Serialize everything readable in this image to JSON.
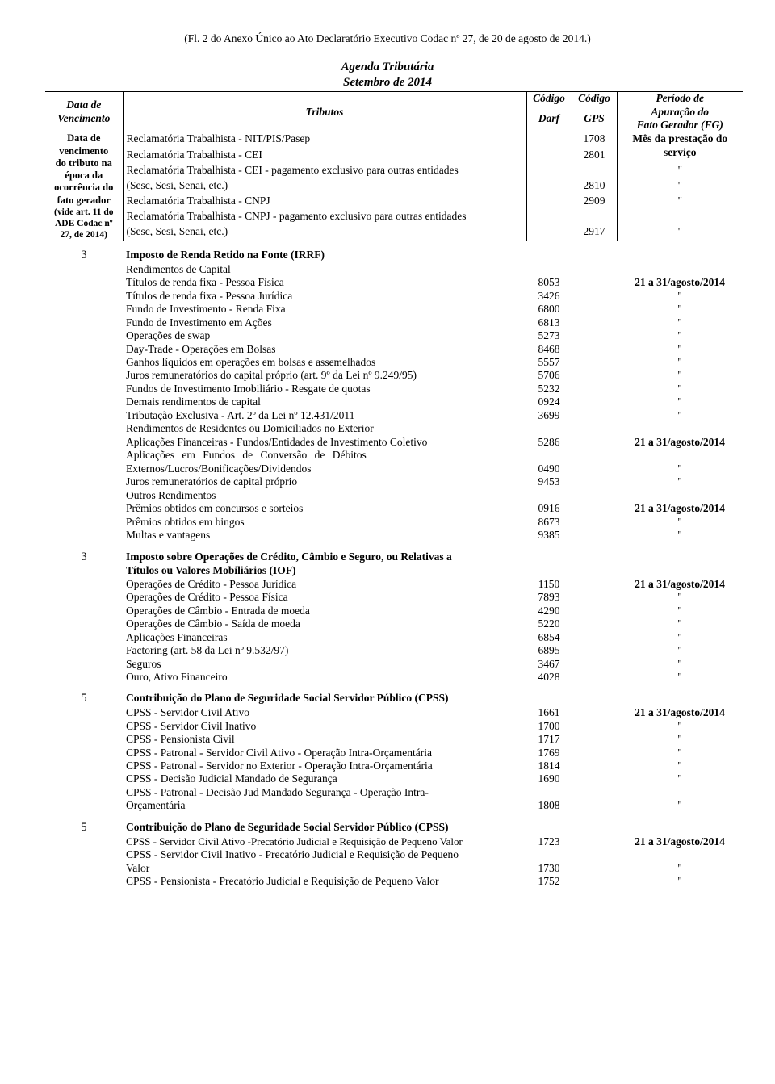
{
  "fl_header": "(Fl. 2 do Anexo Único ao Ato Declaratório Executivo Codac nº 27, de 20 de agosto de 2014.)",
  "agenda_title": "Agenda Tributária",
  "agenda_subtitle": "Setembro de 2014",
  "headers": {
    "data_venc_l1": "Data de",
    "data_venc_l2": "Vencimento",
    "tributos": "Tributos",
    "codigo": "Código",
    "darf": "Darf",
    "gps": "GPS",
    "periodo_l1": "Período de",
    "periodo_l2": "Apuração do",
    "periodo_l3": "Fato Gerador (FG)"
  },
  "left_block": {
    "l1": "Data de",
    "l2": "vencimento",
    "l3": "do tributo na",
    "l4": "época da",
    "l5": "ocorrência do",
    "l6": "fato gerador",
    "l7": "(vide art. 11 do",
    "l8": "ADE Codac nº",
    "l9": "27, de 2014)"
  },
  "block1": {
    "r1": {
      "desc": "Reclamatória Trabalhista - NIT/PIS/Pasep",
      "gps": "1708",
      "per_l1": "Mês da prestação do",
      "per_l2": "serviço"
    },
    "r2": {
      "desc": "Reclamatória Trabalhista - CEI",
      "gps": "2801",
      "per": "\""
    },
    "r3a": {
      "desc": "Reclamatória Trabalhista - CEI - pagamento exclusivo para outras entidades"
    },
    "r3b": {
      "desc": "(Sesc, Sesi, Senai, etc.)",
      "gps": "2810",
      "per": "\""
    },
    "r4": {
      "desc": "Reclamatória Trabalhista - CNPJ",
      "gps": "2909",
      "per": "\""
    },
    "r5a": {
      "desc": "Reclamatória Trabalhista - CNPJ - pagamento exclusivo para outras entidades"
    },
    "r5b": {
      "desc": "(Sesc, Sesi, Senai, etc.)",
      "gps": "2917",
      "per": "\""
    }
  },
  "sec3a": {
    "num": "3",
    "title": "Imposto de Renda Retido na Fonte (IRRF)",
    "sub1": "Rendimentos de Capital",
    "rows": [
      {
        "desc": "Títulos de renda fixa - Pessoa Física",
        "darf": "8053",
        "per": "21 a 31/agosto/2014"
      },
      {
        "desc": "Títulos de renda fixa - Pessoa Jurídica",
        "darf": "3426",
        "per": "\""
      },
      {
        "desc": "Fundo de Investimento - Renda Fixa",
        "darf": "6800",
        "per": "\""
      },
      {
        "desc": "Fundo de Investimento em Ações",
        "darf": "6813",
        "per": "\""
      },
      {
        "desc": "Operações de swap",
        "darf": "5273",
        "per": "\""
      },
      {
        "desc": "Day-Trade - Operações em Bolsas",
        "darf": "8468",
        "per": "\""
      },
      {
        "desc": "Ganhos líquidos em operações em bolsas e assemelhados",
        "darf": "5557",
        "per": "\""
      },
      {
        "desc": "Juros remuneratórios do capital próprio (art. 9º da Lei nº 9.249/95)",
        "darf": "5706",
        "per": "\""
      },
      {
        "desc": "Fundos de Investimento Imobiliário - Resgate de quotas",
        "darf": "5232",
        "per": "\""
      },
      {
        "desc": "Demais rendimentos de capital",
        "darf": "0924",
        "per": "\""
      },
      {
        "desc": "Tributação Exclusiva - Art. 2º da Lei nº 12.431/2011",
        "darf": "3699",
        "per": "\""
      }
    ],
    "sub2": "Rendimentos de Residentes ou Domiciliados no Exterior",
    "rows2": [
      {
        "desc": "Aplicações Financeiras - Fundos/Entidades de Investimento Coletivo",
        "darf": "5286",
        "per": "21 a 31/agosto/2014"
      }
    ],
    "r_aplic_l1": "Aplicações    em    Fundos    de    Conversão    de    Débitos",
    "r_aplic_l2": "Externos/Lucros/Bonificações/Dividendos",
    "r_aplic_darf": "0490",
    "r_aplic_per": "\"",
    "r_juros": {
      "desc": "Juros remuneratórios de capital próprio",
      "darf": "9453",
      "per": "\""
    },
    "sub3": "Outros Rendimentos",
    "rows3": [
      {
        "desc": "Prêmios obtidos em concursos e sorteios",
        "darf": "0916",
        "per": "21 a 31/agosto/2014"
      },
      {
        "desc": "Prêmios obtidos em bingos",
        "darf": "8673",
        "per": "\""
      },
      {
        "desc": "Multas e vantagens",
        "darf": "9385",
        "per": "\""
      }
    ]
  },
  "sec3b": {
    "num": "3",
    "title_l1": "Imposto sobre Operações de Crédito, Câmbio e Seguro, ou Relativas a",
    "title_l2": "Títulos ou Valores Mobiliários (IOF)",
    "rows": [
      {
        "desc": "Operações de Crédito - Pessoa Jurídica",
        "darf": "1150",
        "per": "21 a 31/agosto/2014"
      },
      {
        "desc": "Operações de Crédito - Pessoa Física",
        "darf": "7893",
        "per": "\""
      },
      {
        "desc": "Operações de Câmbio - Entrada de moeda",
        "darf": "4290",
        "per": "\""
      },
      {
        "desc": "Operações de Câmbio - Saída de moeda",
        "darf": "5220",
        "per": "\""
      },
      {
        "desc": "Aplicações Financeiras",
        "darf": "6854",
        "per": "\""
      },
      {
        "desc": "Factoring (art. 58 da Lei nº 9.532/97)",
        "darf": "6895",
        "per": "\""
      },
      {
        "desc": "Seguros",
        "darf": "3467",
        "per": "\""
      },
      {
        "desc": "Ouro, Ativo Financeiro",
        "darf": "4028",
        "per": "\""
      }
    ]
  },
  "sec5a": {
    "num": "5",
    "title": "Contribuição do Plano de Seguridade Social Servidor Público (CPSS)",
    "rows": [
      {
        "desc": "CPSS - Servidor Civil Ativo",
        "darf": "1661",
        "per": "21 a 31/agosto/2014"
      },
      {
        "desc": "CPSS - Servidor Civil Inativo",
        "darf": "1700",
        "per": "\""
      },
      {
        "desc": "CPSS - Pensionista Civil",
        "darf": "1717",
        "per": "\""
      },
      {
        "desc": "CPSS - Patronal - Servidor Civil Ativo - Operação Intra-Orçamentária",
        "darf": "1769",
        "per": "\""
      },
      {
        "desc": "CPSS - Patronal - Servidor no Exterior - Operação Intra-Orçamentária",
        "darf": "1814",
        "per": "\""
      },
      {
        "desc": "CPSS - Decisão Judicial Mandado de Segurança",
        "darf": "1690",
        "per": "\""
      }
    ],
    "r_multi_l1": "CPSS - Patronal - Decisão Jud Mandado Segurança - Operação Intra-",
    "r_multi_l2": "Orçamentária",
    "r_multi_darf": "1808",
    "r_multi_per": "\""
  },
  "sec5b": {
    "num": "5",
    "title": "Contribuição do Plano de Seguridade Social Servidor Público (CPSS)",
    "r1": {
      "desc": "CPSS - Servidor Civil Ativo -Precatório Judicial e Requisição de Pequeno Valor",
      "darf": "1723",
      "per": "21 a 31/agosto/2014"
    },
    "r2_l1": "CPSS - Servidor Civil Inativo - Precatório Judicial e Requisição de Pequeno",
    "r2_l2": "Valor",
    "r2_darf": "1730",
    "r2_per": "\"",
    "r3": {
      "desc": "CPSS - Pensionista - Precatório Judicial e Requisição de Pequeno Valor",
      "darf": "1752",
      "per": "\""
    }
  }
}
